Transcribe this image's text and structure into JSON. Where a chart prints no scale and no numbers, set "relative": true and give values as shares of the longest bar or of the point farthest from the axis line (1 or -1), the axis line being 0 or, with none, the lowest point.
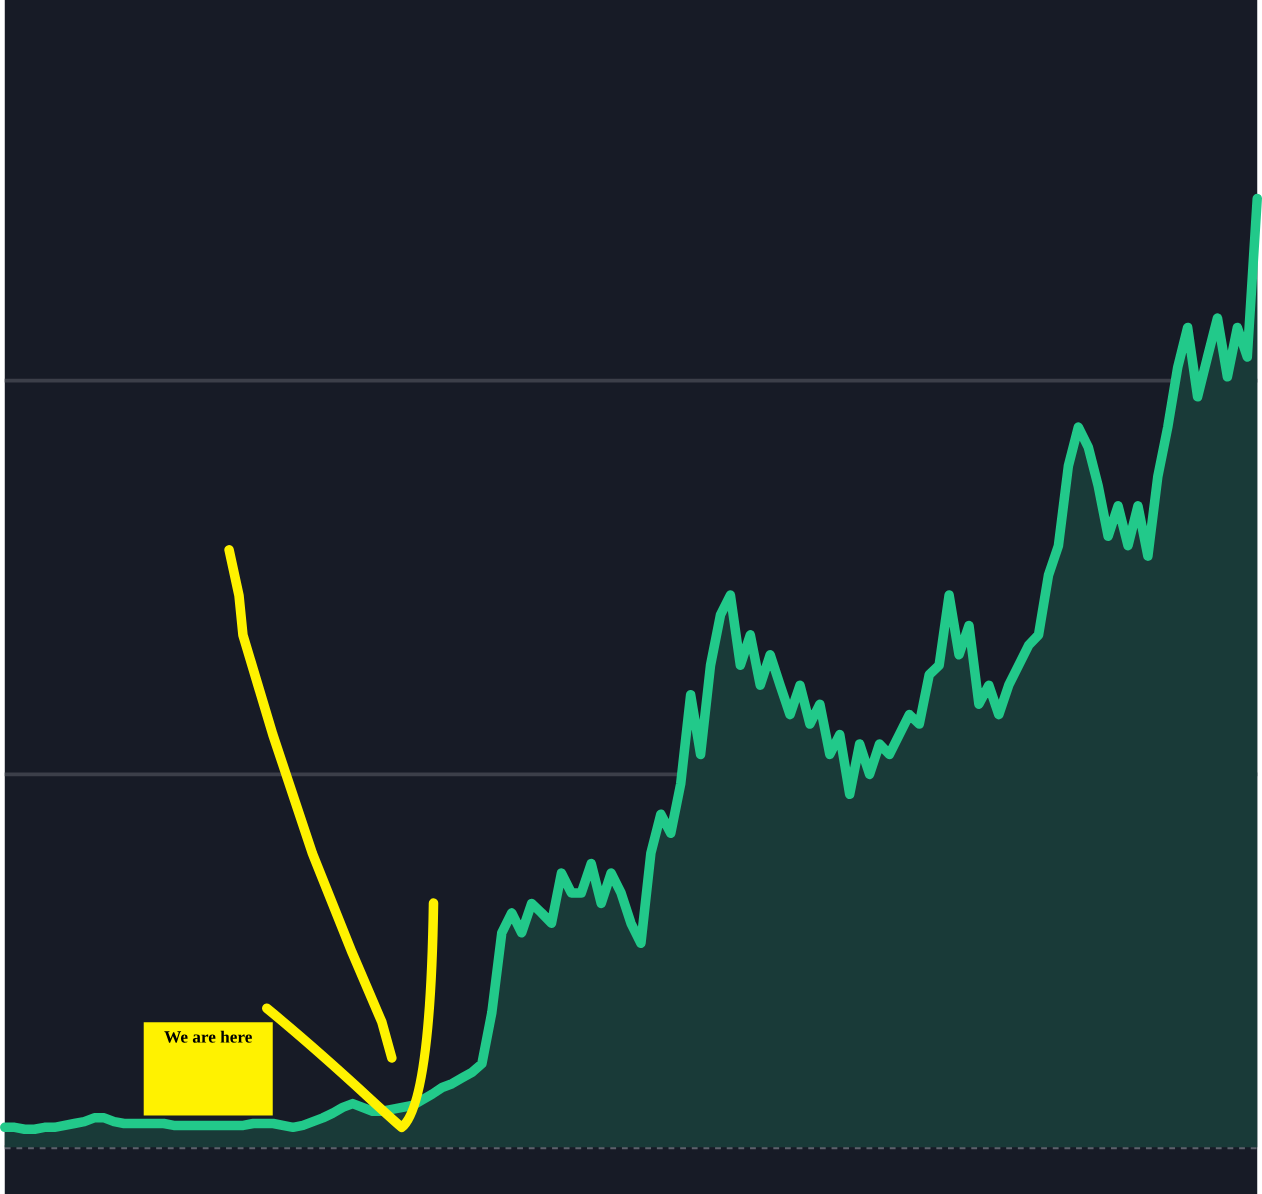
{
  "chart_data": {
    "type": "area",
    "relative": true,
    "categories": [
      null,
      null,
      null,
      null,
      null,
      null,
      null,
      null,
      null,
      null,
      null,
      null,
      null,
      null,
      null,
      null,
      null,
      null,
      null,
      null,
      null,
      null,
      null,
      null,
      null,
      null,
      null,
      null,
      null,
      null,
      null,
      null,
      null,
      null,
      null,
      null,
      null,
      null,
      null,
      null,
      null,
      null,
      null,
      null,
      null,
      null,
      null,
      null,
      null,
      null,
      null,
      null,
      null,
      null,
      null,
      null,
      null,
      null,
      null,
      null,
      null,
      null,
      null,
      null,
      null,
      null,
      null,
      null,
      null,
      null,
      null,
      null,
      null,
      null,
      null,
      null,
      null,
      null,
      null,
      null,
      null,
      null,
      null,
      null,
      null,
      null,
      null,
      null,
      null,
      null,
      null,
      null,
      null,
      null,
      null,
      null,
      null,
      null,
      null,
      null,
      null,
      null,
      null,
      null,
      null,
      null,
      null,
      null,
      null,
      null,
      null,
      null,
      null,
      null,
      null,
      null,
      null,
      null,
      null,
      null,
      null,
      null,
      null,
      null,
      null,
      null,
      null
    ],
    "series": [
      {
        "color": "#22c98a",
        "values": [
          0.021,
          0.021,
          0.019,
          0.019,
          0.021,
          0.021,
          0.023,
          0.025,
          0.027,
          0.031,
          0.031,
          0.027,
          0.025,
          0.025,
          0.025,
          0.025,
          0.025,
          0.023,
          0.023,
          0.023,
          0.023,
          0.023,
          0.023,
          0.023,
          0.023,
          0.025,
          0.025,
          0.025,
          0.023,
          0.021,
          0.023,
          0.027,
          0.031,
          0.036,
          0.042,
          0.046,
          0.042,
          0.038,
          0.038,
          0.04,
          0.042,
          0.044,
          0.05,
          0.056,
          0.063,
          0.067,
          0.073,
          0.079,
          0.088,
          0.142,
          0.226,
          0.247,
          0.226,
          0.257,
          0.247,
          0.236,
          0.289,
          0.268,
          0.268,
          0.299,
          0.257,
          0.289,
          0.268,
          0.236,
          0.215,
          0.31,
          0.351,
          0.331,
          0.383,
          0.477,
          0.414,
          0.508,
          0.561,
          0.582,
          0.508,
          0.54,
          0.487,
          0.519,
          0.487,
          0.456,
          0.487,
          0.446,
          0.467,
          0.414,
          0.435,
          0.372,
          0.425,
          0.393,
          0.425,
          0.414,
          0.435,
          0.456,
          0.446,
          0.498,
          0.508,
          0.582,
          0.519,
          0.55,
          0.467,
          0.487,
          0.456,
          0.487,
          0.508,
          0.529,
          0.54,
          0.603,
          0.634,
          0.718,
          0.759,
          0.738,
          0.697,
          0.644,
          0.676,
          0.634,
          0.676,
          0.623,
          0.707,
          0.759,
          0.822,
          0.864,
          0.791,
          0.833,
          0.874,
          0.812,
          0.864,
          0.833,
          1
        ]
      }
    ],
    "ref_lines": [
      {
        "axis": "y",
        "value": 0.393,
        "color": "#3c3f49"
      },
      {
        "axis": "y",
        "value": 0.808,
        "color": "#3c3f49"
      }
    ],
    "annotations": [
      "We are here"
    ]
  }
}
